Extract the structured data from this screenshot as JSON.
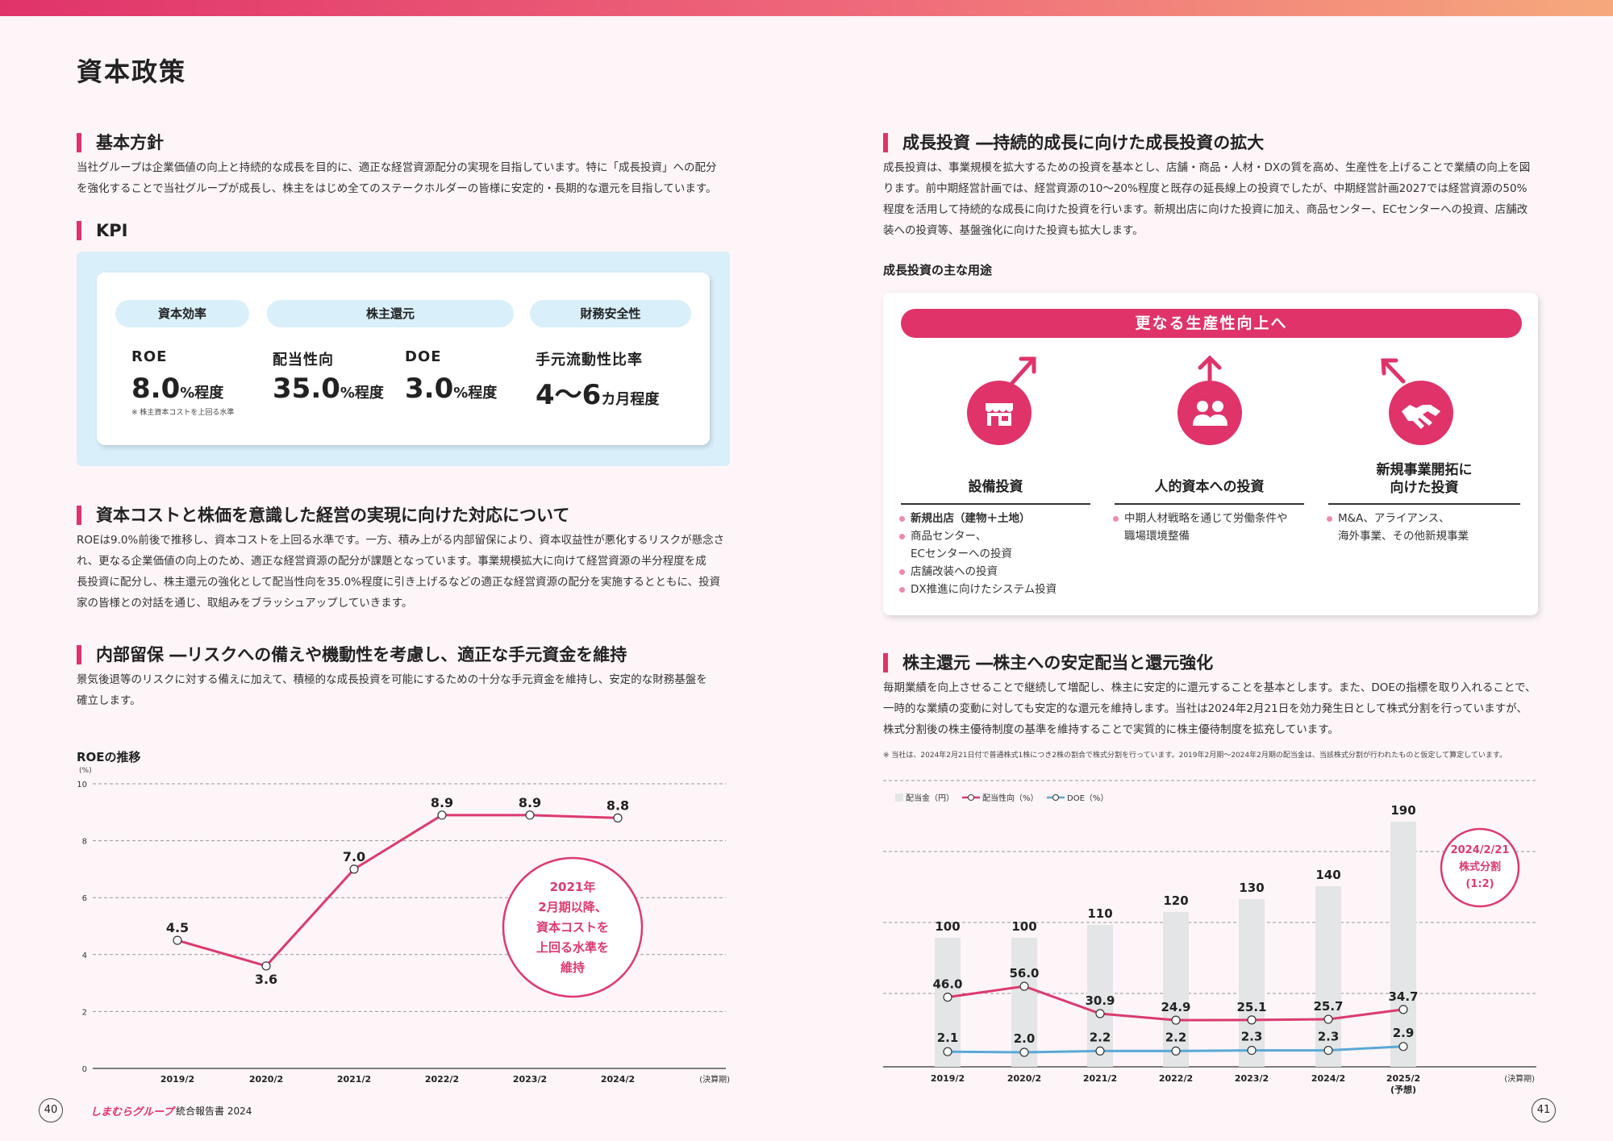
{
  "page_title": "資本政策",
  "left": {
    "basic": {
      "heading": "基本方針",
      "lines": [
        "当社グループは企業価値の向上と持続的な成長を目的に、適正な経営資源配分の実現を目指しています。特に「成長投資」への配分",
        "を強化することで当社グループが成長し、株主をはじめ全てのステークホルダーの皆様に安定的・長期的な還元を目指しています。"
      ]
    },
    "kpi": {
      "heading": "KPI",
      "categories": [
        "資本効率",
        "株主還元",
        "財務安全性"
      ],
      "roe_label": "ROE",
      "roe_value": "8.0",
      "roe_unit": "%程度",
      "roe_note": "※ 株主資本コストを上回る水準",
      "payout_label": "配当性向",
      "payout_value": "35.0",
      "payout_unit": "%程度",
      "doe_label": "DOE",
      "doe_value": "3.0",
      "doe_unit": "%程度",
      "liquidity_label": "手元流動性比率",
      "liquidity_value": "4〜6",
      "liquidity_unit": "カ月程度"
    },
    "cost": {
      "heading": "資本コストと株価を意識した経営の実現に向けた対応について",
      "lines": [
        "ROEは9.0%前後で推移し、資本コストを上回る水準です。一方、積み上がる内部留保により、資本収益性が悪化するリスクが懸念さ",
        "れ、更なる企業価値の向上のため、適正な経営資源の配分が課題となっています。事業規模拡大に向けて経営資源の半分程度を成",
        "長投資に配分し、株主還元の強化として配当性向を35.0%程度に引き上げるなどの適正な経営資源の配分を実施するとともに、投資",
        "家の皆様との対話を通じ、取組みをブラッシュアップしていきます。"
      ]
    },
    "retained": {
      "heading": "内部留保 ―リスクへの備えや機動性を考慮し、適正な手元資金を維持",
      "lines": [
        "景気後退等のリスクに対する備えに加えて、積極的な成長投資を可能にするための十分な手元資金を維持し、安定的な財務基盤を",
        "確立します。"
      ]
    }
  },
  "right": {
    "growth": {
      "heading": "成長投資 ―持続的成長に向けた成長投資の拡大",
      "lines": [
        "成長投資は、事業規模を拡大するための投資を基本とし、店舗・商品・人材・DXの質を高め、生産性を上げることで業績の向上を図",
        "ります。前中期経営計画では、経営資源の10〜20%程度と既存の延長線上の投資でしたが、中期経営計画2027では経営資源の50%",
        "程度を活用して持続的な成長に向けた投資を行います。新規出店に向けた投資に加え、商品センター、ECセンターへの投資、店舗改",
        "装への投資等、基盤強化に向けた投資も拡大します。"
      ],
      "uses_title": "成長投資の主な用途",
      "banner": "更なる生産性向上へ",
      "col1_title": "設備投資",
      "col1_items": [
        "新規出店（建物＋土地）",
        "商品センター、",
        "ECセンターへの投資",
        "店舗改装への投資",
        "DX推進に向けたシステム投資"
      ],
      "col2_title": "人的資本への投資",
      "col2_items": [
        "中期人材戦略を通じて労働条件や",
        "職場環境整備"
      ],
      "col3_title_1": "新規事業開拓に",
      "col3_title_2": "向けた投資",
      "col3_items": [
        "M&A、アライアンス、",
        "海外事業、その他新規事業"
      ]
    },
    "shareholder": {
      "heading": "株主還元 ―株主への安定配当と還元強化",
      "lines": [
        "毎期業績を向上させることで継続して増配し、株主に安定的に還元することを基本とします。また、DOEの指標を取り入れることで、",
        "一時的な業績の変動に対しても安定的な還元を維持します。当社は2024年2月21日を効力発生日として株式分割を行っていますが、",
        "株式分割後の株主優待制度の基準を維持することで実質的に株主優待制度を拡充しています。"
      ],
      "note": "※ 当社は、2024年2月21日付で普通株式1株につき2株の割合で株式分割を行っています。2019年2月期〜2024年2月期の配当金は、当該株式分割が行われたものと仮定して算定しています。"
    }
  },
  "chart_data": [
    {
      "type": "line",
      "title": "ROEの推移",
      "ylabel": "(%)",
      "xlabel": "(決算期)",
      "categories": [
        "2019/2",
        "2020/2",
        "2021/2",
        "2022/2",
        "2023/2",
        "2024/2"
      ],
      "values": [
        4.5,
        3.6,
        7.0,
        8.9,
        8.9,
        8.8
      ],
      "value_labels": [
        "4.5",
        "3.6",
        "7.0",
        "8.9",
        "8.9",
        "8.8"
      ],
      "ylim": [
        0,
        10
      ],
      "yticks": [
        "0",
        "2",
        "4",
        "6",
        "8",
        "10"
      ],
      "annotation": [
        "2021年",
        "2月期以降、",
        "資本コストを",
        "上回る水準を",
        "維持"
      ],
      "colors": {
        "line": "#dc3a6e",
        "grid": "#999999"
      }
    },
    {
      "type": "bar",
      "categories": [
        "2019/2",
        "2020/2",
        "2021/2",
        "2022/2",
        "2023/2",
        "2024/2",
        "2025/2"
      ],
      "last_category_note": "(予想)",
      "xlabel": "(決算期)",
      "legend": [
        "配当金（円）",
        "配当性向（%）",
        "DOE（%）"
      ],
      "series": [
        {
          "name": "配当金（円）",
          "type": "bar",
          "values": [
            100,
            100,
            110,
            120,
            130,
            140,
            190
          ],
          "labels": [
            "100",
            "100",
            "110",
            "120",
            "130",
            "140",
            "190"
          ]
        },
        {
          "name": "配当性向（%）",
          "type": "line",
          "values": [
            46.0,
            56.0,
            30.9,
            24.9,
            25.1,
            25.7,
            34.7
          ],
          "labels": [
            "46.0",
            "56.0",
            "30.9",
            "24.9",
            "25.1",
            "25.7",
            "34.7"
          ]
        },
        {
          "name": "DOE（%）",
          "type": "line",
          "values": [
            2.1,
            2.0,
            2.2,
            2.2,
            2.3,
            2.3,
            2.9
          ],
          "labels": [
            "2.1",
            "2.0",
            "2.2",
            "2.2",
            "2.3",
            "2.3",
            "2.9"
          ]
        }
      ],
      "annotation": [
        "2024/2/21",
        "株式分割",
        "(1:2)"
      ],
      "colors": {
        "bar": "#e3e5e6",
        "payout": "#dc3a6e",
        "doe": "#5aa9d6"
      }
    }
  ],
  "footer": {
    "left_page": "40",
    "right_page": "41",
    "brand": "しまむらグループ",
    "report": "統合報告書 2024"
  }
}
